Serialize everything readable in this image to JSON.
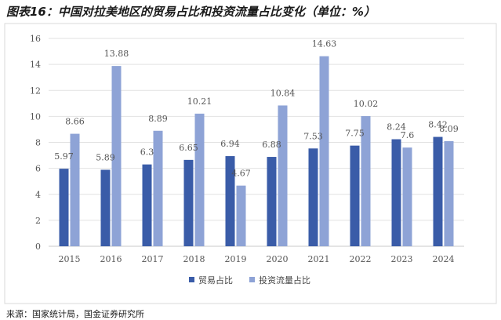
{
  "title": "图表16：中国对拉美地区的贸易占比和投资流量占比变化（单位：%）",
  "source_note": "来源：国家统计局，国金证券研究所",
  "colors": {
    "trade": "#3a5ca8",
    "invest": "#8ea3d6"
  },
  "chart_data": {
    "type": "bar",
    "categories": [
      "2015",
      "2016",
      "2017",
      "2018",
      "2019",
      "2020",
      "2021",
      "2022",
      "2023",
      "2024"
    ],
    "series": [
      {
        "name": "贸易占比",
        "values": [
          5.97,
          5.89,
          6.3,
          6.65,
          6.94,
          6.88,
          7.53,
          7.75,
          8.24,
          8.42
        ],
        "labels": [
          "5.97",
          "5.89",
          "6.3",
          "6.65",
          "6.94",
          "6.88",
          "7.53",
          "7.75",
          "8.24",
          "8.42"
        ]
      },
      {
        "name": "投资流量占比",
        "values": [
          8.66,
          13.88,
          8.89,
          10.21,
          4.67,
          10.84,
          14.63,
          10.02,
          7.6,
          8.09
        ],
        "labels": [
          "8.66",
          "13.88",
          "8.89",
          "10.21",
          "4.67",
          "10.84",
          "14.63",
          "10.02",
          "7.6",
          "8.09"
        ]
      }
    ],
    "ylim": [
      0,
      16
    ],
    "yticks": [
      "0",
      "2",
      "4",
      "6",
      "8",
      "10",
      "12",
      "14",
      "16"
    ],
    "grid": true,
    "legend_position": "bottom"
  }
}
